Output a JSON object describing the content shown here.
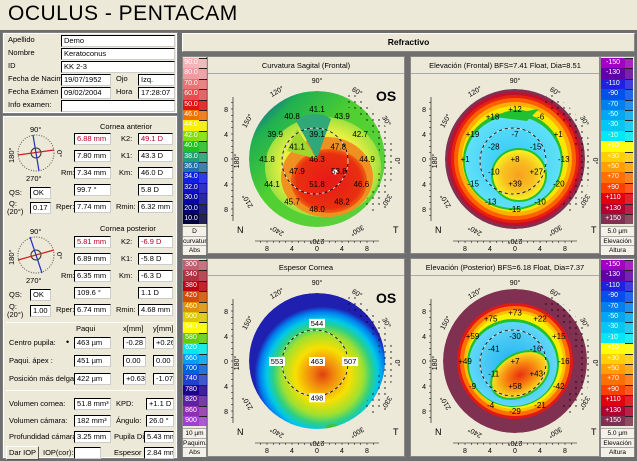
{
  "app": {
    "title": "OCULUS  -  PENTACAM"
  },
  "patient": {
    "apellido_label": "Apellido",
    "apellido": "Demo",
    "nombre_label": "Nombre",
    "nombre": "Keratoconus",
    "id_label": "ID",
    "id": "KK 2-3",
    "nacim_label": "Fecha de Nacim",
    "nacim": "19/07/1952",
    "ojo_label": "Ojo",
    "ojo": "Izq.",
    "examen_label": "Fecha Exámen",
    "examen": "09/02/2004",
    "hora_label": "Hora",
    "hora": "17:28:07",
    "info_label": "Info examen:",
    "info": ""
  },
  "compass": {
    "top": "90°",
    "right": "0°",
    "left": "180°",
    "bottom": "270°"
  },
  "anterior": {
    "title": "Cornea anterior",
    "r1": "6.88 mm",
    "k2_label": "K2:",
    "k2": "49.1 D",
    "r2": "7.80 mm",
    "k1_label": "K1:",
    "k1": "43.3 D",
    "rm_label": "Rm:",
    "rm": "7.34 mm",
    "km_label": "Km:",
    "km": "46.0 D",
    "qs_label": "QS:",
    "qs": "OK",
    "axis": "99.7 °",
    "astig": "5.8 D",
    "q_label": "Q:",
    "q_sub": "(20°)",
    "q": "0.17",
    "rper_label": "Rper:",
    "rper": "7.74 mm",
    "rmin_label": "Rmin:",
    "rmin": "6.32 mm"
  },
  "posterior": {
    "title": "Cornea posterior",
    "r1": "5.81 mm",
    "k2_label": "K2:",
    "k2": "-6.9 D",
    "r2": "6.89 mm",
    "k1_label": "K1:",
    "k1": "-5.8 D",
    "rm_label": "Rm:",
    "rm": "6.35 mm",
    "km_label": "Km:",
    "km": "-6.3 D",
    "qs_label": "QS:",
    "qs": "OK",
    "axis": "109.6 °",
    "astig": "1.1 D",
    "q_label": "Q:",
    "q_sub": "(20°)",
    "q": "1.00",
    "rper_label": "Rper:",
    "rper": "6.74 mm",
    "rmin_label": "Rmin:",
    "rmin": "4.68 mm"
  },
  "pachy": {
    "col_paqui": "Paqui",
    "col_x": "x[mm]",
    "col_y": "y[mm]",
    "rows": [
      {
        "label": "Centro pupila:",
        "paqui": "463 µm",
        "x": "-0.28",
        "y": "+0.26"
      },
      {
        "label": "Paqui. ápex :",
        "paqui": "451 µm",
        "x": "0.00",
        "y": "0.00"
      },
      {
        "label": "Posición más delgada",
        "paqui": "422 µm",
        "x": "+0.63",
        "y": "-1.07"
      }
    ]
  },
  "volumes": {
    "vol_cornea_label": "Volumen cornea:",
    "vol_cornea": "51.8 mm³",
    "kpd_label": "KPD:",
    "kpd": "+1.1 D",
    "vol_camara_label": "Volumen cámara:",
    "vol_camara": "182 mm³",
    "angulo_label": "Ángulo:",
    "angulo": "26.0 °",
    "prof_label": "Profundidad cámara a",
    "prof": "3.25 mm",
    "pupila_label": "Pupila Dia",
    "pupila": "5.43 mm",
    "dar_iop": "Dar IOP",
    "iop_label": "IOP(cor):",
    "iop": "",
    "espesor_label": "Espesor c",
    "espesor": "2.84 mm"
  },
  "main": {
    "header": "Refractivo"
  },
  "map_common": {
    "angle_labels": [
      "90°",
      "60°",
      "30°",
      "0°",
      "330°",
      "300°",
      "270°",
      "240°",
      "210°",
      "180°",
      "150°",
      "120°"
    ],
    "axis_ticks": [
      "8",
      "4",
      "0",
      "4",
      "8"
    ],
    "nasal": "N",
    "temporal": "T",
    "eye": "OS"
  },
  "scales": {
    "curvature": {
      "labels": [
        "90.0",
        "80.0",
        "70.0",
        "60.0",
        "50.0",
        "46.0",
        "44.0",
        "42.0",
        "40.0",
        "38.0",
        "36.0",
        "34.0",
        "32.0",
        "30.0",
        "20.0",
        "10.0"
      ],
      "colors": [
        "#f2b4b8",
        "#ee9aa0",
        "#e87476",
        "#e05050",
        "#e01212",
        "#f07000",
        "#f8f000",
        "#80e000",
        "#20c020",
        "#20a070",
        "#2070a8",
        "#1020e0",
        "#1010c0",
        "#0808a0",
        "#000070",
        "#000040"
      ],
      "unit": "D",
      "type": "curvatura",
      "mode": "Abs"
    },
    "elevation_front": {
      "labels": [
        "-150",
        "-130",
        "-110",
        "-90",
        "-70",
        "-50",
        "-30",
        "-10",
        "+10",
        "+30",
        "+50",
        "+70",
        "+90",
        "+110",
        "+130",
        "+150"
      ],
      "colors": [
        "#a000c0",
        "#6000a8",
        "#2020e0",
        "#0050f0",
        "#0080f0",
        "#00a8f0",
        "#00c8f0",
        "#00e8f8",
        "#ffff00",
        "#ffd000",
        "#ffa000",
        "#ff7000",
        "#ff4000",
        "#e00010",
        "#b00030",
        "#803050"
      ],
      "unit": "5.0 µm",
      "type": "Elevación",
      "mode": "Altura"
    },
    "pachymetry": {
      "labels": [
        "300",
        "340",
        "380",
        "420",
        "460",
        "500",
        "540",
        "580",
        "620",
        "660",
        "700",
        "740",
        "780",
        "820",
        "860",
        "900"
      ],
      "colors": [
        "#c06070",
        "#b03040",
        "#c00010",
        "#d05000",
        "#e09000",
        "#e0c800",
        "#ffff00",
        "#60d000",
        "#00e8e8",
        "#00a0f0",
        "#0060e0",
        "#2040d0",
        "#200090",
        "#6020a0",
        "#9030b0",
        "#a040d0"
      ],
      "unit": "10 µm",
      "type": "Paquim.",
      "mode": "Abs"
    },
    "elevation_back": {
      "labels": [
        "-150",
        "-130",
        "-110",
        "-90",
        "-70",
        "-50",
        "-30",
        "-10",
        "+10",
        "+30",
        "+50",
        "+70",
        "+90",
        "+110",
        "+130",
        "+150"
      ],
      "colors": [
        "#a000c0",
        "#6000a8",
        "#2020e0",
        "#0050f0",
        "#0080f0",
        "#00a8f0",
        "#00c8f0",
        "#00e8f8",
        "#ffff00",
        "#ffd000",
        "#ffa000",
        "#ff7000",
        "#ff4000",
        "#e00010",
        "#b00030",
        "#803050"
      ],
      "unit": "5.0 µm",
      "type": "Elevación",
      "mode": "Altura"
    }
  },
  "maps": [
    {
      "title": "Curvatura Sagital (Frontal)",
      "show_eye": true,
      "values": [
        {
          "v": "41.1",
          "x": 0,
          "y": 8
        },
        {
          "v": "40.8",
          "x": -4,
          "y": 6.9
        },
        {
          "v": "43.9",
          "x": 4,
          "y": 6.9
        },
        {
          "v": "39.9",
          "x": -6.7,
          "y": 4
        },
        {
          "v": "39.1",
          "x": 0,
          "y": 4
        },
        {
          "v": "42.7",
          "x": 6.9,
          "y": 4
        },
        {
          "v": "41.1",
          "x": -3.2,
          "y": 2
        },
        {
          "v": "47.8",
          "x": 3.4,
          "y": 2
        },
        {
          "v": "41.8",
          "x": -8,
          "y": 0
        },
        {
          "v": "46.3",
          "x": 0,
          "y": 0
        },
        {
          "v": "44.9",
          "x": 8,
          "y": 0
        },
        {
          "v": "47.9",
          "x": -3.2,
          "y": -1.9
        },
        {
          "v": "53.8",
          "x": 3.5,
          "y": -1.9
        },
        {
          "v": "44.1",
          "x": -7.2,
          "y": -4
        },
        {
          "v": "51.8",
          "x": 0,
          "y": -4
        },
        {
          "v": "46.6",
          "x": 7.1,
          "y": -4
        },
        {
          "v": "45.7",
          "x": -4,
          "y": -6.8
        },
        {
          "v": "48.2",
          "x": 4,
          "y": -6.8
        },
        {
          "v": "48.0",
          "x": 0,
          "y": -8
        }
      ]
    },
    {
      "title": "Elevación (Frontal)  BFS=7.41 Float, Dia=8.51",
      "show_eye": false,
      "values": [
        {
          "v": "+12",
          "x": 0,
          "y": 8
        },
        {
          "v": "+18",
          "x": -3.6,
          "y": 6.8
        },
        {
          "v": "-6",
          "x": 4.1,
          "y": 6.8
        },
        {
          "v": "+19",
          "x": -6.8,
          "y": 4
        },
        {
          "v": "-7",
          "x": 0,
          "y": 4
        },
        {
          "v": "+1",
          "x": 6.9,
          "y": 4
        },
        {
          "v": "-28",
          "x": -3.4,
          "y": 2
        },
        {
          "v": "-15",
          "x": 3.3,
          "y": 2
        },
        {
          "v": "+1",
          "x": -8,
          "y": 0
        },
        {
          "v": "+8",
          "x": 0,
          "y": 0
        },
        {
          "v": "-13",
          "x": 7.8,
          "y": 0
        },
        {
          "v": "-10",
          "x": -3.4,
          "y": -2
        },
        {
          "v": "+27",
          "x": 3.4,
          "y": -2
        },
        {
          "v": "-15",
          "x": -6.7,
          "y": -3.9
        },
        {
          "v": "+39",
          "x": 0,
          "y": -3.9
        },
        {
          "v": "-20",
          "x": 7,
          "y": -3.9
        },
        {
          "v": "-13",
          "x": -3.9,
          "y": -6.8
        },
        {
          "v": "-10",
          "x": 4,
          "y": -6.8
        },
        {
          "v": "-15",
          "x": 0,
          "y": -8
        }
      ]
    },
    {
      "title": "Espesor Cornea",
      "show_eye": true,
      "values": [
        {
          "v": "544",
          "x": 0,
          "y": 6.1
        },
        {
          "v": "553",
          "x": -6.4,
          "y": 0
        },
        {
          "v": "463",
          "x": 0,
          "y": 0
        },
        {
          "v": "507",
          "x": 5.3,
          "y": 0
        },
        {
          "v": "498",
          "x": 0,
          "y": -5.8
        }
      ]
    },
    {
      "title": "Elevación (Posterior)  BFS=6.18 Float, Dia=7.37",
      "show_eye": false,
      "values": [
        {
          "v": "+73",
          "x": 0,
          "y": 7.8
        },
        {
          "v": "+75",
          "x": -3.9,
          "y": 6.8
        },
        {
          "v": "+22",
          "x": 4,
          "y": 6.8
        },
        {
          "v": "+59",
          "x": -6.8,
          "y": 4
        },
        {
          "v": "-30",
          "x": 0,
          "y": 4
        },
        {
          "v": "+15",
          "x": 7,
          "y": 4
        },
        {
          "v": "-41",
          "x": -3.4,
          "y": 2
        },
        {
          "v": "-16",
          "x": 3.3,
          "y": 2
        },
        {
          "v": "+49",
          "x": -8,
          "y": 0
        },
        {
          "v": "+7",
          "x": 0,
          "y": 0
        },
        {
          "v": "-16",
          "x": 7.8,
          "y": 0
        },
        {
          "v": "-11",
          "x": -3.4,
          "y": -2
        },
        {
          "v": "+43",
          "x": 3.4,
          "y": -2
        },
        {
          "v": "-9",
          "x": -6.8,
          "y": -4
        },
        {
          "v": "+58",
          "x": 0,
          "y": -4
        },
        {
          "v": "-42",
          "x": 7,
          "y": -4
        },
        {
          "v": "-4",
          "x": -3.9,
          "y": -7
        },
        {
          "v": "-21",
          "x": 4,
          "y": -7
        },
        {
          "v": "-29",
          "x": 0,
          "y": -8
        }
      ]
    }
  ]
}
